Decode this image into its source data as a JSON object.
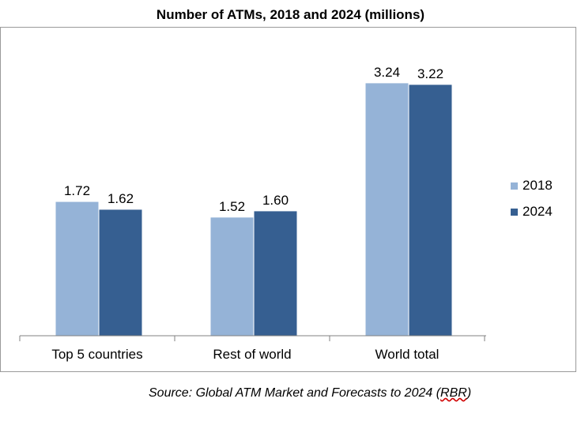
{
  "chart_data": {
    "type": "bar",
    "title": "Number of ATMs, 2018 and 2024 (millions)",
    "categories": [
      "Top 5 countries",
      "Rest of world",
      "World total"
    ],
    "series": [
      {
        "name": "2018",
        "values": [
          1.72,
          1.52,
          3.24
        ],
        "labels": [
          "1.72",
          "1.52",
          "3.24"
        ],
        "color": "#95b3d7"
      },
      {
        "name": "2024",
        "values": [
          1.62,
          1.6,
          3.22
        ],
        "labels": [
          "1.62",
          "1.60",
          "3.22"
        ],
        "color": "#365f91"
      }
    ],
    "ylim": [
      0,
      3.5
    ],
    "grid": false,
    "legend": "right"
  },
  "source": {
    "prefix": "Source: Global ATM Market and Forecasts to 2024 (",
    "abbr": "RBR",
    "suffix": ")"
  }
}
